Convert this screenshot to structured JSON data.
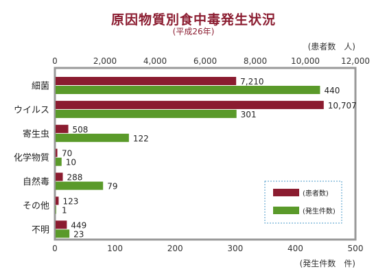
{
  "title": "原因物質別食中毒発生状況",
  "subtitle": "(平成26年)",
  "chart_data": {
    "type": "bar",
    "orientation": "horizontal",
    "categories": [
      "細菌",
      "ウイルス",
      "寄生虫",
      "化学物質",
      "自然毒",
      "その他",
      "不明"
    ],
    "series": [
      {
        "name": "(患者数)",
        "axis": "top",
        "color": "#8b1c30",
        "values": [
          7210,
          10707,
          508,
          70,
          288,
          123,
          449
        ],
        "labels": [
          "7,210",
          "10,707",
          "508",
          "70",
          "288",
          "123",
          "449"
        ]
      },
      {
        "name": "(発生件数)",
        "axis": "bottom",
        "color": "#5a9a2a",
        "values": [
          440,
          301,
          122,
          10,
          79,
          1,
          23
        ],
        "labels": [
          "440",
          "301",
          "122",
          "10",
          "79",
          "1",
          "23"
        ]
      }
    ],
    "top_axis": {
      "label": "(患者数　人)",
      "lim": [
        0,
        12000
      ],
      "ticks": [
        "0",
        "2,000",
        "4,000",
        "6,000",
        "8,000",
        "10,000",
        "12,000"
      ]
    },
    "bottom_axis": {
      "label": "(発生件数　件)",
      "lim": [
        0,
        500
      ],
      "ticks": [
        "0",
        "100",
        "200",
        "300",
        "400",
        "500"
      ]
    },
    "legend_position": "bottom-right",
    "grid": false
  }
}
